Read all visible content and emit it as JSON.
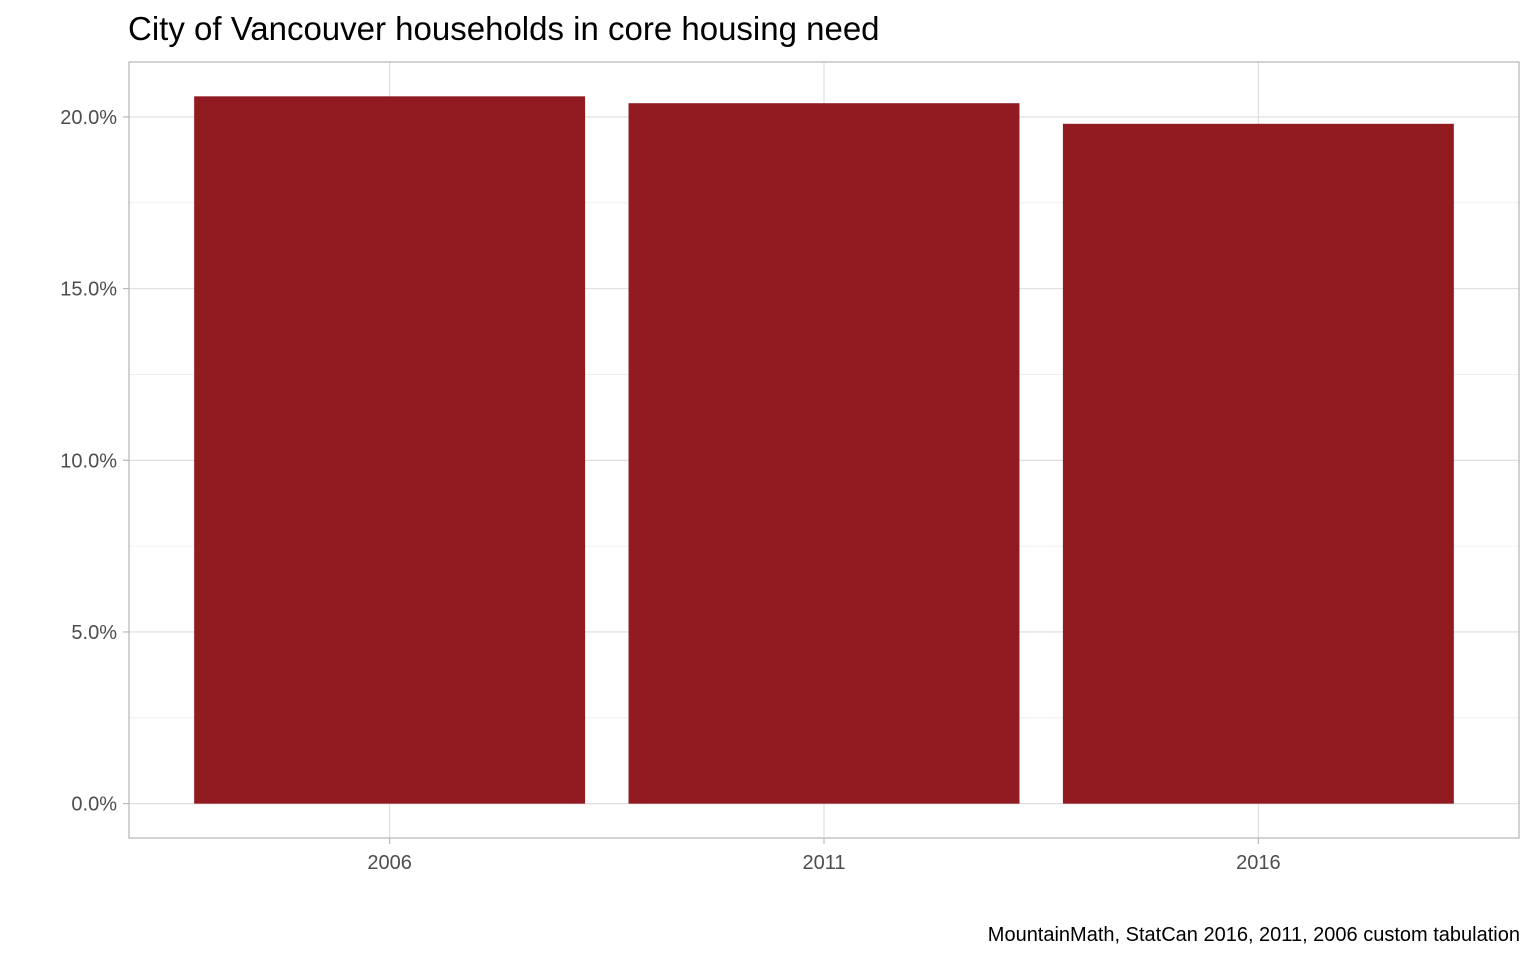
{
  "chart_data": {
    "type": "bar",
    "title": "City of Vancouver households in core housing need",
    "caption": "MountainMath, StatCan 2016, 2011, 2006 custom tabulation",
    "categories": [
      "2006",
      "2011",
      "2016"
    ],
    "values": [
      0.206,
      0.204,
      0.198
    ],
    "ylim": [
      -0.01,
      0.216
    ],
    "y_ticks": [
      0,
      0.05,
      0.1,
      0.15,
      0.2
    ],
    "y_tick_labels": [
      "0.0%",
      "5.0%",
      "10.0%",
      "15.0%",
      "20.0%"
    ],
    "xlabel": "",
    "ylabel": "",
    "grid": true,
    "legend": "none",
    "bar_color": "#921B22"
  }
}
